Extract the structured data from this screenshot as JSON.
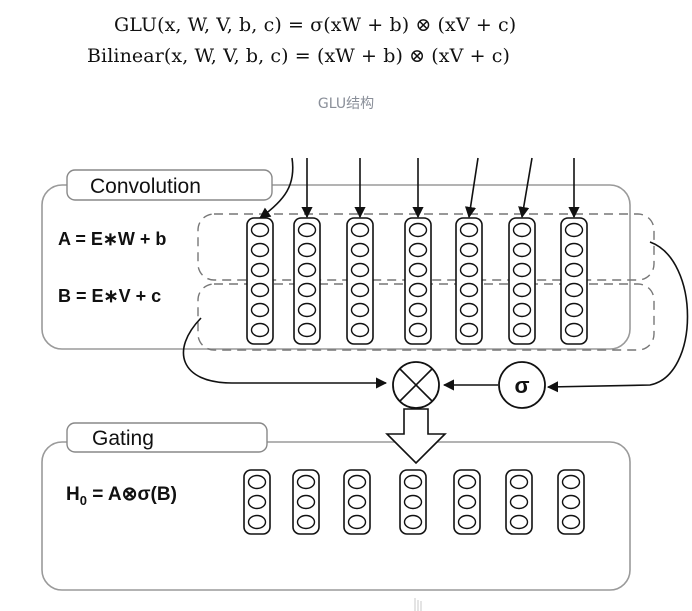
{
  "equations": {
    "glu": "GLU(x, W, V, b, c) = σ(xW + b) ⊗ (xV + c)",
    "bilinear": "Bilinear(x, W, V, b, c) = (xW + b) ⊗ (xV + c)"
  },
  "caption": "GLU结构",
  "diagram": {
    "convolution_title": "Convolution",
    "eq_a": "A = E∗W + b",
    "eq_b": "B = E∗V + c",
    "multiply_symbol": "⊗",
    "sigma_symbol": "σ",
    "gating_title": "Gating",
    "h0_h": "H",
    "h0_sub": "0",
    "h0_rest": " = A⊗σ(B)",
    "conv_columns": 7,
    "gating_columns": 7
  }
}
